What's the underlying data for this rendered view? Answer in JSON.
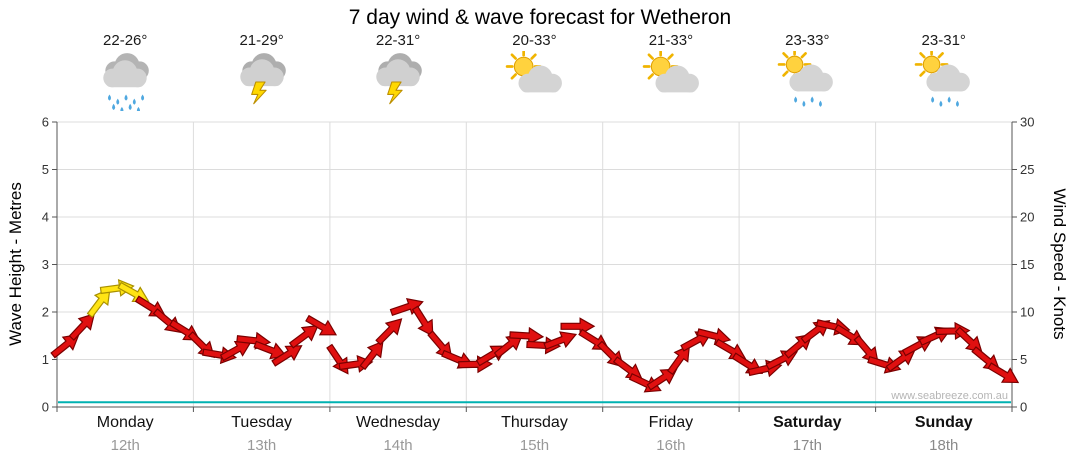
{
  "title": "7 day wind & wave forecast for Wetheron",
  "watermark": "www.seabreeze.com.au",
  "days": [
    {
      "name": "Monday",
      "date": "12th",
      "temp": "22-26°",
      "icon": "rain",
      "bold": false
    },
    {
      "name": "Tuesday",
      "date": "13th",
      "temp": "21-29°",
      "icon": "storm",
      "bold": false
    },
    {
      "name": "Wednesday",
      "date": "14th",
      "temp": "22-31°",
      "icon": "storm",
      "bold": false
    },
    {
      "name": "Thursday",
      "date": "15th",
      "temp": "20-33°",
      "icon": "partly-cloudy",
      "bold": false
    },
    {
      "name": "Friday",
      "date": "16th",
      "temp": "21-33°",
      "icon": "partly-cloudy",
      "bold": false
    },
    {
      "name": "Saturday",
      "date": "17th",
      "temp": "23-33°",
      "icon": "sun-shower",
      "bold": true
    },
    {
      "name": "Sunday",
      "date": "18th",
      "temp": "23-31°",
      "icon": "sun-shower",
      "bold": true
    }
  ],
  "chart_data": {
    "type": "line",
    "title": "7 day wind & wave forecast for Wetheron",
    "x_axis": {
      "days": [
        "Monday",
        "Tuesday",
        "Wednesday",
        "Thursday",
        "Friday",
        "Saturday",
        "Sunday"
      ],
      "dates": [
        "12th",
        "13th",
        "14th",
        "15th",
        "16th",
        "17th",
        "18th"
      ],
      "points_per_day": 8,
      "interval_hours": 3
    },
    "left_axis": {
      "label": "Wave Height - Metres",
      "range": [
        0,
        6
      ],
      "ticks": [
        0,
        1,
        2,
        3,
        4,
        5,
        6
      ]
    },
    "right_axis": {
      "label": "Wind Speed - Knots",
      "range": [
        0,
        30
      ],
      "ticks": [
        0,
        5,
        10,
        15,
        20,
        25,
        30
      ]
    },
    "grid": true,
    "legend": "none",
    "series": [
      {
        "name": "Wind Speed",
        "unit": "knots",
        "style": "wind-arrows",
        "color": "#e01010",
        "outline": "#7a0000",
        "strong_color": "#ffe414",
        "strong_outline": "#a89000",
        "strong_threshold_knots": 11,
        "values": [
          6.5,
          8.5,
          11,
          12.5,
          12,
          10.5,
          9,
          8,
          6.5,
          5.5,
          6,
          7,
          6,
          5.5,
          7.5,
          8.5,
          5,
          4.5,
          5.5,
          8,
          10.5,
          9,
          6.5,
          5,
          4.5,
          5.5,
          6.5,
          7.5,
          6.5,
          7,
          8.5,
          7,
          5.5,
          4,
          2.5,
          3,
          5,
          7,
          7.5,
          6,
          4.5,
          4,
          5,
          6.5,
          8,
          8.5,
          7.5,
          6,
          4.5,
          5,
          6.5,
          7.5,
          8,
          7,
          5,
          3.5
        ]
      },
      {
        "name": "Wave Height",
        "unit": "metres",
        "style": "line",
        "color": "#00b2b2",
        "constant_value": 0.1
      }
    ]
  }
}
